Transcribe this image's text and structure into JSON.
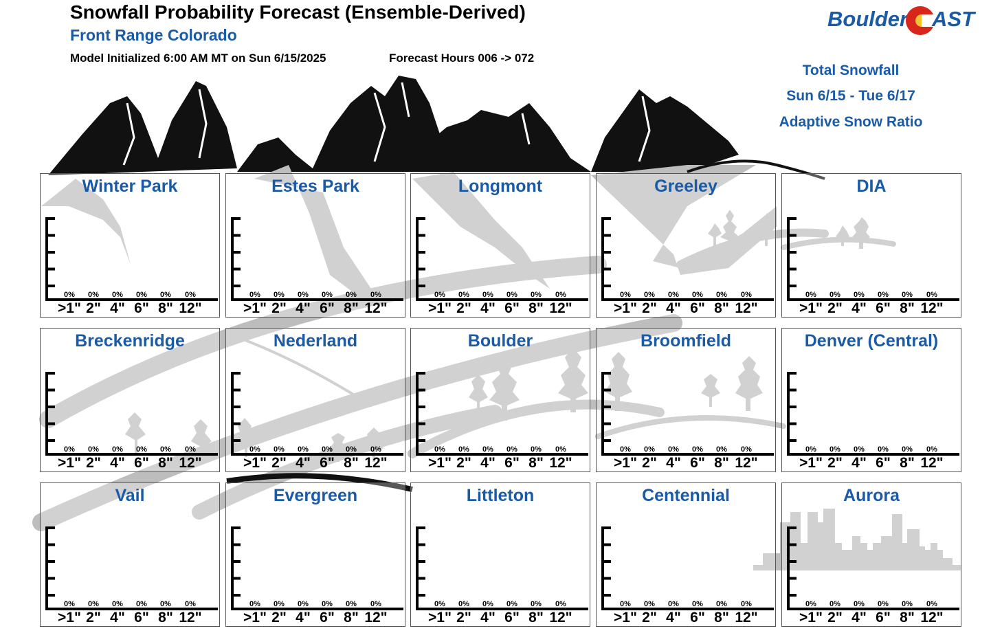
{
  "header": {
    "title": "Snowfall Probability Forecast (Ensemble-Derived)",
    "subtitle": "Front Range Colorado",
    "init": "Model Initialized 6:00 AM MT on Sun 6/15/2025",
    "hours": "Forecast Hours 006 -> 072"
  },
  "logo": {
    "word1": "Boulder",
    "word2": "AST"
  },
  "info": {
    "line1": "Total Snowfall",
    "line2": "Sun 6/15 - Tue 6/17",
    "line3": "Adaptive Snow Ratio"
  },
  "colors": {
    "accent": "#1a5aa6",
    "bars": "#1a5aa6",
    "axes": "#000000",
    "background_art": "#bdbdbd"
  },
  "chart_data": {
    "type": "bar",
    "categories": [
      ">1\"",
      "2\"",
      "4\"",
      "6\"",
      "8\"",
      "12\""
    ],
    "value_format": "percent",
    "ylim": [
      0,
      100
    ],
    "panels": [
      {
        "name": "Winter Park",
        "values": [
          0,
          0,
          0,
          0,
          0,
          0
        ],
        "labels": [
          "0%",
          "0%",
          "0%",
          "0%",
          "0%",
          "0%"
        ]
      },
      {
        "name": "Estes Park",
        "values": [
          0,
          0,
          0,
          0,
          0,
          0
        ],
        "labels": [
          "0%",
          "0%",
          "0%",
          "0%",
          "0%",
          "0%"
        ]
      },
      {
        "name": "Longmont",
        "values": [
          0,
          0,
          0,
          0,
          0,
          0
        ],
        "labels": [
          "0%",
          "0%",
          "0%",
          "0%",
          "0%",
          "0%"
        ]
      },
      {
        "name": "Greeley",
        "values": [
          0,
          0,
          0,
          0,
          0,
          0
        ],
        "labels": [
          "0%",
          "0%",
          "0%",
          "0%",
          "0%",
          "0%"
        ]
      },
      {
        "name": "DIA",
        "values": [
          0,
          0,
          0,
          0,
          0,
          0
        ],
        "labels": [
          "0%",
          "0%",
          "0%",
          "0%",
          "0%",
          "0%"
        ]
      },
      {
        "name": "Breckenridge",
        "values": [
          0,
          0,
          0,
          0,
          0,
          0
        ],
        "labels": [
          "0%",
          "0%",
          "0%",
          "0%",
          "0%",
          "0%"
        ]
      },
      {
        "name": "Nederland",
        "values": [
          0,
          0,
          0,
          0,
          0,
          0
        ],
        "labels": [
          "0%",
          "0%",
          "0%",
          "0%",
          "0%",
          "0%"
        ]
      },
      {
        "name": "Boulder",
        "values": [
          0,
          0,
          0,
          0,
          0,
          0
        ],
        "labels": [
          "0%",
          "0%",
          "0%",
          "0%",
          "0%",
          "0%"
        ]
      },
      {
        "name": "Broomfield",
        "values": [
          0,
          0,
          0,
          0,
          0,
          0
        ],
        "labels": [
          "0%",
          "0%",
          "0%",
          "0%",
          "0%",
          "0%"
        ]
      },
      {
        "name": "Denver (Central)",
        "values": [
          0,
          0,
          0,
          0,
          0,
          0
        ],
        "labels": [
          "0%",
          "0%",
          "0%",
          "0%",
          "0%",
          "0%"
        ]
      },
      {
        "name": "Vail",
        "values": [
          0,
          0,
          0,
          0,
          0,
          0
        ],
        "labels": [
          "0%",
          "0%",
          "0%",
          "0%",
          "0%",
          "0%"
        ]
      },
      {
        "name": "Evergreen",
        "values": [
          0,
          0,
          0,
          0,
          0,
          0
        ],
        "labels": [
          "0%",
          "0%",
          "0%",
          "0%",
          "0%",
          "0%"
        ]
      },
      {
        "name": "Littleton",
        "values": [
          0,
          0,
          0,
          0,
          0,
          0
        ],
        "labels": [
          "0%",
          "0%",
          "0%",
          "0%",
          "0%",
          "0%"
        ]
      },
      {
        "name": "Centennial",
        "values": [
          0,
          0,
          0,
          0,
          0,
          0
        ],
        "labels": [
          "0%",
          "0%",
          "0%",
          "0%",
          "0%",
          "0%"
        ]
      },
      {
        "name": "Aurora",
        "values": [
          0,
          0,
          0,
          0,
          0,
          0
        ],
        "labels": [
          "0%",
          "0%",
          "0%",
          "0%",
          "0%",
          "0%"
        ]
      }
    ]
  }
}
